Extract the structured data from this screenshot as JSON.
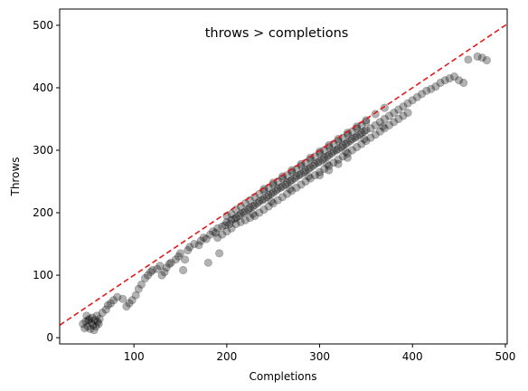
{
  "chart_data": {
    "type": "scatter",
    "annotation": "throws > completions",
    "xlabel": "Completions",
    "ylabel": "Throws",
    "xlim": [
      20,
      502
    ],
    "ylim": [
      -10,
      526
    ],
    "xticks": [
      100,
      200,
      300,
      400,
      500
    ],
    "yticks": [
      0,
      100,
      200,
      300,
      400,
      500
    ],
    "xtick_labels": [
      "100",
      "200",
      "300",
      "400",
      "500"
    ],
    "ytick_labels": [
      "0",
      "100",
      "200",
      "300",
      "400",
      "500"
    ],
    "grid": false,
    "reference_line": {
      "style": "dashed",
      "color": "#e31a1c",
      "slope": 1,
      "intercept": 0
    },
    "marker_color": "#000000",
    "series": [
      {
        "points": [
          [
            45,
            22
          ],
          [
            48,
            26
          ],
          [
            50,
            18
          ],
          [
            52,
            30
          ],
          [
            54,
            24
          ],
          [
            56,
            20
          ],
          [
            58,
            28
          ],
          [
            60,
            35
          ],
          [
            62,
            22
          ],
          [
            55,
            32
          ],
          [
            47,
            15
          ],
          [
            53,
            14
          ],
          [
            57,
            12
          ],
          [
            61,
            25
          ],
          [
            63,
            30
          ],
          [
            49,
            35
          ],
          [
            51,
            28
          ],
          [
            59,
            18
          ],
          [
            66,
            40
          ],
          [
            70,
            45
          ],
          [
            72,
            52
          ],
          [
            75,
            55
          ],
          [
            78,
            60
          ],
          [
            82,
            65
          ],
          [
            88,
            62
          ],
          [
            92,
            50
          ],
          [
            95,
            55
          ],
          [
            98,
            60
          ],
          [
            102,
            68
          ],
          [
            105,
            78
          ],
          [
            108,
            85
          ],
          [
            112,
            95
          ],
          [
            115,
            100
          ],
          [
            118,
            105
          ],
          [
            120,
            108
          ],
          [
            125,
            110
          ],
          [
            128,
            115
          ],
          [
            130,
            100
          ],
          [
            133,
            105
          ],
          [
            135,
            112
          ],
          [
            138,
            118
          ],
          [
            140,
            120
          ],
          [
            145,
            125
          ],
          [
            148,
            130
          ],
          [
            150,
            135
          ],
          [
            153,
            108
          ],
          [
            155,
            125
          ],
          [
            158,
            140
          ],
          [
            160,
            145
          ],
          [
            165,
            150
          ],
          [
            170,
            148
          ],
          [
            172,
            155
          ],
          [
            175,
            160
          ],
          [
            178,
            158
          ],
          [
            180,
            120
          ],
          [
            182,
            165
          ],
          [
            185,
            170
          ],
          [
            188,
            168
          ],
          [
            190,
            175
          ],
          [
            192,
            135
          ],
          [
            195,
            178
          ],
          [
            198,
            180
          ],
          [
            200,
            185
          ],
          [
            203,
            182
          ],
          [
            205,
            188
          ],
          [
            208,
            190
          ],
          [
            210,
            192
          ],
          [
            213,
            195
          ],
          [
            215,
            198
          ],
          [
            218,
            200
          ],
          [
            220,
            202
          ],
          [
            223,
            205
          ],
          [
            225,
            208
          ],
          [
            228,
            210
          ],
          [
            230,
            212
          ],
          [
            233,
            215
          ],
          [
            235,
            218
          ],
          [
            238,
            220
          ],
          [
            240,
            222
          ],
          [
            243,
            225
          ],
          [
            245,
            228
          ],
          [
            248,
            230
          ],
          [
            250,
            232
          ],
          [
            253,
            235
          ],
          [
            255,
            238
          ],
          [
            258,
            240
          ],
          [
            260,
            242
          ],
          [
            263,
            245
          ],
          [
            265,
            248
          ],
          [
            268,
            250
          ],
          [
            270,
            252
          ],
          [
            273,
            255
          ],
          [
            275,
            258
          ],
          [
            278,
            260
          ],
          [
            280,
            262
          ],
          [
            283,
            265
          ],
          [
            285,
            268
          ],
          [
            288,
            270
          ],
          [
            290,
            272
          ],
          [
            293,
            275
          ],
          [
            295,
            278
          ],
          [
            298,
            280
          ],
          [
            300,
            282
          ],
          [
            303,
            285
          ],
          [
            305,
            288
          ],
          [
            308,
            290
          ],
          [
            310,
            292
          ],
          [
            313,
            295
          ],
          [
            315,
            298
          ],
          [
            318,
            300
          ],
          [
            320,
            302
          ],
          [
            323,
            305
          ],
          [
            325,
            308
          ],
          [
            328,
            310
          ],
          [
            330,
            312
          ],
          [
            333,
            315
          ],
          [
            335,
            318
          ],
          [
            338,
            320
          ],
          [
            340,
            322
          ],
          [
            343,
            325
          ],
          [
            345,
            328
          ],
          [
            348,
            330
          ],
          [
            350,
            332
          ],
          [
            355,
            335
          ],
          [
            360,
            340
          ],
          [
            365,
            345
          ],
          [
            370,
            350
          ],
          [
            375,
            355
          ],
          [
            380,
            360
          ],
          [
            385,
            365
          ],
          [
            390,
            370
          ],
          [
            395,
            375
          ],
          [
            400,
            380
          ],
          [
            405,
            385
          ],
          [
            410,
            390
          ],
          [
            415,
            395
          ],
          [
            420,
            398
          ],
          [
            425,
            402
          ],
          [
            430,
            408
          ],
          [
            435,
            412
          ],
          [
            440,
            415
          ],
          [
            445,
            418
          ],
          [
            450,
            412
          ],
          [
            455,
            408
          ],
          [
            460,
            445
          ],
          [
            470,
            450
          ],
          [
            475,
            448
          ],
          [
            480,
            444
          ],
          [
            210,
            182
          ],
          [
            215,
            185
          ],
          [
            220,
            188
          ],
          [
            225,
            192
          ],
          [
            230,
            195
          ],
          [
            235,
            200
          ],
          [
            240,
            205
          ],
          [
            245,
            210
          ],
          [
            250,
            215
          ],
          [
            255,
            220
          ],
          [
            260,
            225
          ],
          [
            265,
            230
          ],
          [
            270,
            235
          ],
          [
            275,
            240
          ],
          [
            280,
            245
          ],
          [
            285,
            250
          ],
          [
            290,
            255
          ],
          [
            295,
            260
          ],
          [
            300,
            265
          ],
          [
            305,
            270
          ],
          [
            310,
            275
          ],
          [
            315,
            280
          ],
          [
            320,
            285
          ],
          [
            325,
            290
          ],
          [
            330,
            295
          ],
          [
            335,
            300
          ],
          [
            340,
            305
          ],
          [
            345,
            310
          ],
          [
            350,
            315
          ],
          [
            355,
            320
          ],
          [
            360,
            325
          ],
          [
            365,
            330
          ],
          [
            370,
            335
          ],
          [
            375,
            340
          ],
          [
            380,
            345
          ],
          [
            385,
            350
          ],
          [
            390,
            355
          ],
          [
            395,
            360
          ],
          [
            200,
            195
          ],
          [
            205,
            198
          ],
          [
            210,
            205
          ],
          [
            215,
            210
          ],
          [
            220,
            215
          ],
          [
            225,
            220
          ],
          [
            230,
            225
          ],
          [
            235,
            230
          ],
          [
            240,
            235
          ],
          [
            245,
            240
          ],
          [
            250,
            245
          ],
          [
            255,
            250
          ],
          [
            260,
            255
          ],
          [
            265,
            260
          ],
          [
            270,
            265
          ],
          [
            275,
            270
          ],
          [
            280,
            275
          ],
          [
            285,
            280
          ],
          [
            290,
            285
          ],
          [
            295,
            290
          ],
          [
            300,
            295
          ],
          [
            305,
            300
          ],
          [
            310,
            305
          ],
          [
            315,
            310
          ],
          [
            320,
            315
          ],
          [
            325,
            320
          ],
          [
            330,
            325
          ],
          [
            335,
            330
          ],
          [
            340,
            335
          ],
          [
            345,
            340
          ],
          [
            350,
            345
          ],
          [
            190,
            160
          ],
          [
            195,
            165
          ],
          [
            200,
            170
          ],
          [
            205,
            175
          ],
          [
            228,
            198
          ],
          [
            248,
            218
          ],
          [
            268,
            238
          ],
          [
            288,
            258
          ],
          [
            308,
            278
          ],
          [
            328,
            298
          ],
          [
            348,
            318
          ],
          [
            368,
            338
          ],
          [
            300,
            260
          ],
          [
            310,
            268
          ],
          [
            320,
            278
          ],
          [
            330,
            288
          ],
          [
            240,
            238
          ],
          [
            250,
            248
          ],
          [
            260,
            258
          ],
          [
            270,
            268
          ],
          [
            280,
            278
          ],
          [
            290,
            288
          ],
          [
            300,
            298
          ],
          [
            310,
            308
          ],
          [
            320,
            318
          ],
          [
            330,
            328
          ],
          [
            340,
            338
          ],
          [
            350,
            348
          ],
          [
            360,
            358
          ],
          [
            370,
            368
          ]
        ]
      }
    ]
  }
}
